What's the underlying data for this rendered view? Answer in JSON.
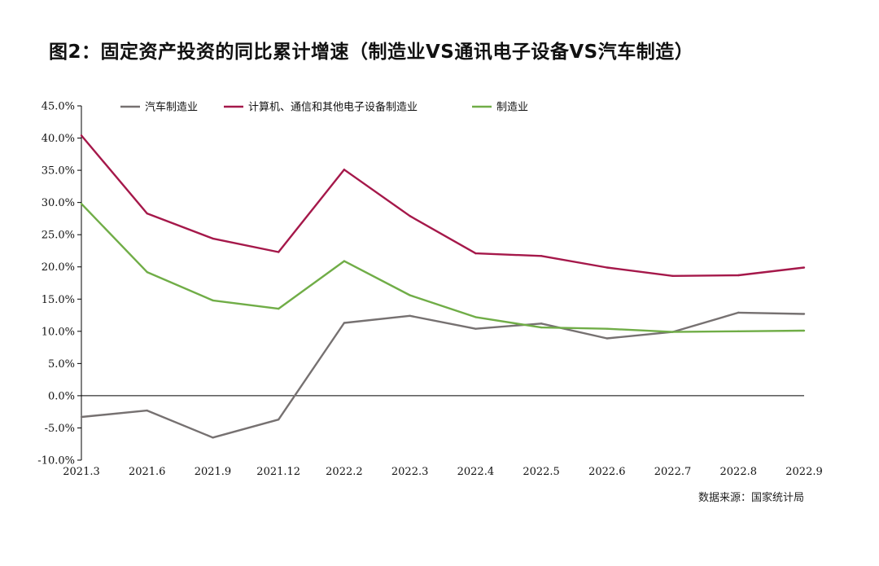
{
  "title": "图2：固定资产投资的同比累计增速（制造业VS通讯电子设备VS汽车制造）",
  "source": "数据来源：国家统计局",
  "colors": {
    "auto": "#767171",
    "electronics": "#A5184A",
    "manufacturing": "#70AD47",
    "axis": "#000000",
    "text": "#111111"
  },
  "chart_data": {
    "type": "line",
    "title": "",
    "xlabel": "",
    "ylabel": "",
    "ylim": [
      -10,
      45
    ],
    "ytick_step": 5,
    "y_tick_labels": [
      "-10.0%",
      "-5.0%",
      "0.0%",
      "5.0%",
      "10.0%",
      "15.0%",
      "20.0%",
      "25.0%",
      "30.0%",
      "35.0%",
      "40.0%",
      "45.0%"
    ],
    "grid": false,
    "legend_position": "top",
    "categories": [
      "2021.3",
      "2021.6",
      "2021.9",
      "2021.12",
      "2022.2",
      "2022.3",
      "2022.4",
      "2022.5",
      "2022.6",
      "2022.7",
      "2022.8",
      "2022.9"
    ],
    "series": [
      {
        "name": "汽车制造业",
        "color_key": "auto",
        "values": [
          -3.3,
          -2.3,
          -6.5,
          -3.7,
          11.3,
          12.4,
          10.4,
          11.2,
          8.9,
          9.9,
          12.9,
          12.7
        ]
      },
      {
        "name": "计算机、通信和其他电子设备制造业",
        "color_key": "electronics",
        "values": [
          40.4,
          28.3,
          24.4,
          22.3,
          35.1,
          27.9,
          22.1,
          21.7,
          19.9,
          18.6,
          18.7,
          19.9
        ]
      },
      {
        "name": "制造业",
        "color_key": "manufacturing",
        "values": [
          29.8,
          19.2,
          14.8,
          13.5,
          20.9,
          15.6,
          12.2,
          10.6,
          10.4,
          9.9,
          10.0,
          10.1
        ]
      }
    ]
  }
}
